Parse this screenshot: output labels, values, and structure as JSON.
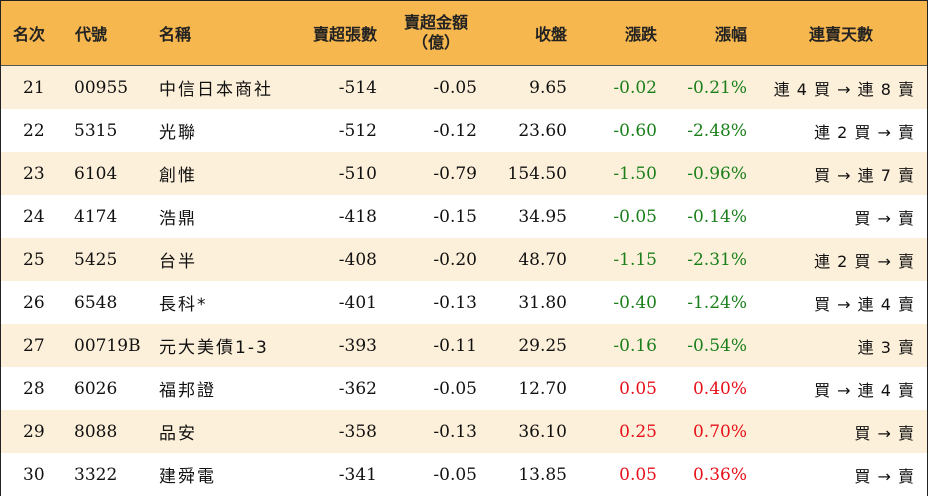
{
  "headers": {
    "rank": "名次",
    "code": "代號",
    "name": "名稱",
    "sell_lots": "賣超張數",
    "sell_amount_line1": "賣超金額",
    "sell_amount_line2": "（億）",
    "close": "收盤",
    "change": "漲跌",
    "pct": "漲幅",
    "streak": "連賣天數"
  },
  "colors": {
    "header_bg": "#f6b74f",
    "stripe_bg": "#fdf0da",
    "up": "#e8101a",
    "down": "#1a7f1a"
  },
  "rows": [
    {
      "rank": "21",
      "code": "00955",
      "name": "中信日本商社",
      "sell_lots": "-514",
      "sell_amount": "-0.05",
      "close": "9.65",
      "change": "-0.02",
      "pct": "-0.21%",
      "streak": "連 4 買 → 連 8 賣"
    },
    {
      "rank": "22",
      "code": "5315",
      "name": "光聯",
      "sell_lots": "-512",
      "sell_amount": "-0.12",
      "close": "23.60",
      "change": "-0.60",
      "pct": "-2.48%",
      "streak": "連 2 買 → 賣"
    },
    {
      "rank": "23",
      "code": "6104",
      "name": "創惟",
      "sell_lots": "-510",
      "sell_amount": "-0.79",
      "close": "154.50",
      "change": "-1.50",
      "pct": "-0.96%",
      "streak": "買 → 連 7 賣"
    },
    {
      "rank": "24",
      "code": "4174",
      "name": "浩鼎",
      "sell_lots": "-418",
      "sell_amount": "-0.15",
      "close": "34.95",
      "change": "-0.05",
      "pct": "-0.14%",
      "streak": "買 → 賣"
    },
    {
      "rank": "25",
      "code": "5425",
      "name": "台半",
      "sell_lots": "-408",
      "sell_amount": "-0.20",
      "close": "48.70",
      "change": "-1.15",
      "pct": "-2.31%",
      "streak": "連 2 買 → 賣"
    },
    {
      "rank": "26",
      "code": "6548",
      "name": "長科*",
      "sell_lots": "-401",
      "sell_amount": "-0.13",
      "close": "31.80",
      "change": "-0.40",
      "pct": "-1.24%",
      "streak": "買 → 連 4 賣"
    },
    {
      "rank": "27",
      "code": "00719B",
      "name": "元大美債1-3",
      "sell_lots": "-393",
      "sell_amount": "-0.11",
      "close": "29.25",
      "change": "-0.16",
      "pct": "-0.54%",
      "streak": "連 3 賣"
    },
    {
      "rank": "28",
      "code": "6026",
      "name": "福邦證",
      "sell_lots": "-362",
      "sell_amount": "-0.05",
      "close": "12.70",
      "change": "0.05",
      "pct": "0.40%",
      "streak": "買 → 連 4 賣"
    },
    {
      "rank": "29",
      "code": "8088",
      "name": "品安",
      "sell_lots": "-358",
      "sell_amount": "-0.13",
      "close": "36.10",
      "change": "0.25",
      "pct": "0.70%",
      "streak": "買 → 賣"
    },
    {
      "rank": "30",
      "code": "3322",
      "name": "建舜電",
      "sell_lots": "-341",
      "sell_amount": "-0.05",
      "close": "13.85",
      "change": "0.05",
      "pct": "0.36%",
      "streak": "買 → 賣"
    }
  ]
}
